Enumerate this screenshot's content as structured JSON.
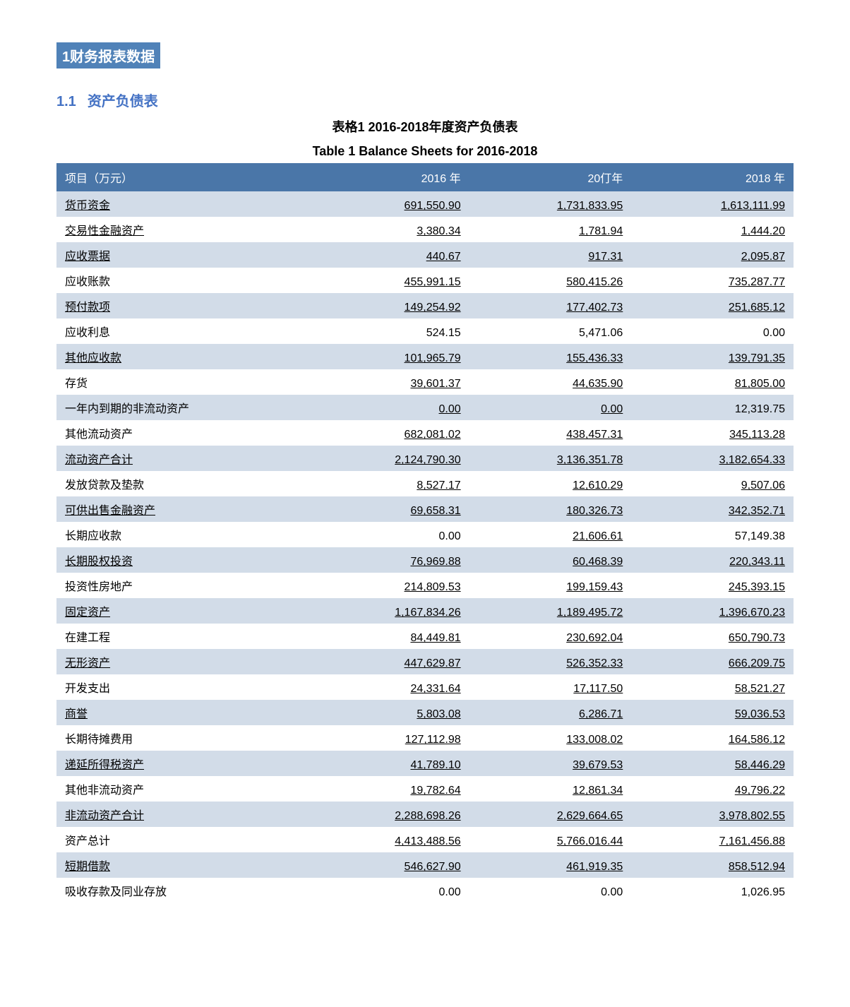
{
  "section": {
    "badge": "1财务报表数据",
    "number": "1.1",
    "title": "资产负债表"
  },
  "table": {
    "type": "table",
    "title_cn": "表格1 2016-2018年度资产负债表",
    "title_en": "Table 1 Balance Sheets for 2016-2018",
    "header_bg": "#4a76a8",
    "header_color": "#ffffff",
    "row_bg_odd": "#d2dce8",
    "row_bg_even": "#ffffff",
    "text_color": "#000000",
    "section_color": "#4472c4",
    "badge_bg": "#5082b8",
    "font_size": 16,
    "columns": [
      "项目（万元）",
      "2016 年",
      "20仃年",
      "2018 年"
    ],
    "rows": [
      {
        "label": "货币资金",
        "y2016": "691,550.90",
        "y2017": "1,731,833.95",
        "y2018": "1,613,111.99",
        "u2016": true,
        "u2017": true,
        "u2018": true,
        "ul": true
      },
      {
        "label": "交易性金融资产",
        "y2016": "3,380.34",
        "y2017": "1,781.94",
        "y2018": "1,444.20",
        "u2016": true,
        "u2017": true,
        "u2018": true,
        "ul": true
      },
      {
        "label": "应收票据",
        "y2016": "440.67",
        "y2017": "917.31",
        "y2018": "2,095.87",
        "u2016": true,
        "u2017": true,
        "u2018": true,
        "ul": true
      },
      {
        "label": "应收账款",
        "y2016": "455,991.15",
        "y2017": "580,415.26",
        "y2018": "735,287.77",
        "u2016": true,
        "u2017": true,
        "u2018": true,
        "ul": false
      },
      {
        "label": "预付款项",
        "y2016": "149,254.92",
        "y2017": "177,402.73",
        "y2018": "251,685.12",
        "u2016": true,
        "u2017": true,
        "u2018": true,
        "ul": true
      },
      {
        "label": "应收利息",
        "y2016": "524.15",
        "y2017": "5,471.06",
        "y2018": "0.00",
        "u2016": false,
        "u2017": false,
        "u2018": false,
        "ul": false
      },
      {
        "label": "其他应收款",
        "y2016": "101,965.79",
        "y2017": "155,436.33",
        "y2018": "139,791.35",
        "u2016": true,
        "u2017": true,
        "u2018": true,
        "ul": true
      },
      {
        "label": "存货",
        "y2016": "39,601.37",
        "y2017": "44,635.90",
        "y2018": "81,805.00",
        "u2016": true,
        "u2017": true,
        "u2018": true,
        "ul": false
      },
      {
        "label": "一年内到期的非流动资产",
        "y2016": "0.00",
        "y2017": "0.00",
        "y2018": "12,319.75",
        "u2016": true,
        "u2017": true,
        "u2018": false,
        "ul": false
      },
      {
        "label": "其他流动资产",
        "y2016": "682,081.02",
        "y2017": "438,457.31",
        "y2018": "345,113.28",
        "u2016": true,
        "u2017": true,
        "u2018": true,
        "ul": false
      },
      {
        "label": "流动资产合计",
        "y2016": "2,124,790.30",
        "y2017": "3,136,351.78",
        "y2018": "3,182,654.33",
        "u2016": true,
        "u2017": true,
        "u2018": true,
        "ul": true
      },
      {
        "label": "发放贷款及垫款",
        "y2016": "8,527.17",
        "y2017": "12,610.29",
        "y2018": "9,507.06",
        "u2016": true,
        "u2017": true,
        "u2018": true,
        "ul": false
      },
      {
        "label": "可供出售金融资产",
        "y2016": "69,658.31",
        "y2017": "180,326.73",
        "y2018": "342,352.71",
        "u2016": true,
        "u2017": true,
        "u2018": true,
        "ul": true
      },
      {
        "label": "长期应收款",
        "y2016": "0.00",
        "y2017": "21,606.61",
        "y2018": "57,149.38",
        "u2016": false,
        "u2017": true,
        "u2018": false,
        "ul": false
      },
      {
        "label": "长期股权投资",
        "y2016": "76,969.88",
        "y2017": "60,468.39",
        "y2018": "220,343.11",
        "u2016": true,
        "u2017": true,
        "u2018": true,
        "ul": true
      },
      {
        "label": "投资性房地产",
        "y2016": "214,809.53",
        "y2017": "199,159.43",
        "y2018": "245,393.15",
        "u2016": true,
        "u2017": true,
        "u2018": true,
        "ul": false
      },
      {
        "label": "固定资产",
        "y2016": "1,167,834.26",
        "y2017": "1,189,495.72",
        "y2018": "1,396,670.23",
        "u2016": true,
        "u2017": true,
        "u2018": true,
        "ul": true
      },
      {
        "label": "在建工程",
        "y2016": "84,449.81",
        "y2017": "230,692.04",
        "y2018": "650,790.73",
        "u2016": true,
        "u2017": true,
        "u2018": true,
        "ul": false
      },
      {
        "label": "无形资产",
        "y2016": "447,629.87",
        "y2017": "526,352.33",
        "y2018": "666,209.75",
        "u2016": true,
        "u2017": true,
        "u2018": true,
        "ul": true
      },
      {
        "label": "开发支出",
        "y2016": "24,331.64",
        "y2017": "17,117.50",
        "y2018": "58,521.27",
        "u2016": true,
        "u2017": true,
        "u2018": true,
        "ul": false
      },
      {
        "label": "商誉",
        "y2016": "5,803.08",
        "y2017": "6,286.71",
        "y2018": "59,036.53",
        "u2016": true,
        "u2017": true,
        "u2018": true,
        "ul": true
      },
      {
        "label": "长期待摊费用",
        "y2016": "127,112.98",
        "y2017": "133,008.02",
        "y2018": "164,586.12",
        "u2016": true,
        "u2017": true,
        "u2018": true,
        "ul": false
      },
      {
        "label": "递延所得税资产",
        "y2016": "41,789.10",
        "y2017": "39,679.53",
        "y2018": "58,446.29",
        "u2016": true,
        "u2017": true,
        "u2018": true,
        "ul": true
      },
      {
        "label": "其他非流动资产",
        "y2016": "19,782.64",
        "y2017": "12,861.34",
        "y2018": "49,796.22",
        "u2016": true,
        "u2017": true,
        "u2018": true,
        "ul": false
      },
      {
        "label": "非流动资产合计",
        "y2016": "2,288,698.26",
        "y2017": "2,629,664.65",
        "y2018": "3,978,802.55",
        "u2016": true,
        "u2017": true,
        "u2018": true,
        "ul": true
      },
      {
        "label": "资产总计",
        "y2016": "4,413,488.56",
        "y2017": "5,766,016.44",
        "y2018": "7,161,456.88",
        "u2016": true,
        "u2017": true,
        "u2018": true,
        "ul": false
      },
      {
        "label": "短期借款",
        "y2016": "546,627.90",
        "y2017": "461,919.35",
        "y2018": "858,512.94",
        "u2016": true,
        "u2017": true,
        "u2018": true,
        "ul": true
      },
      {
        "label": "吸收存款及同业存放",
        "y2016": "0.00",
        "y2017": "0.00",
        "y2018": "1,026.95",
        "u2016": false,
        "u2017": false,
        "u2018": false,
        "ul": false
      }
    ]
  }
}
